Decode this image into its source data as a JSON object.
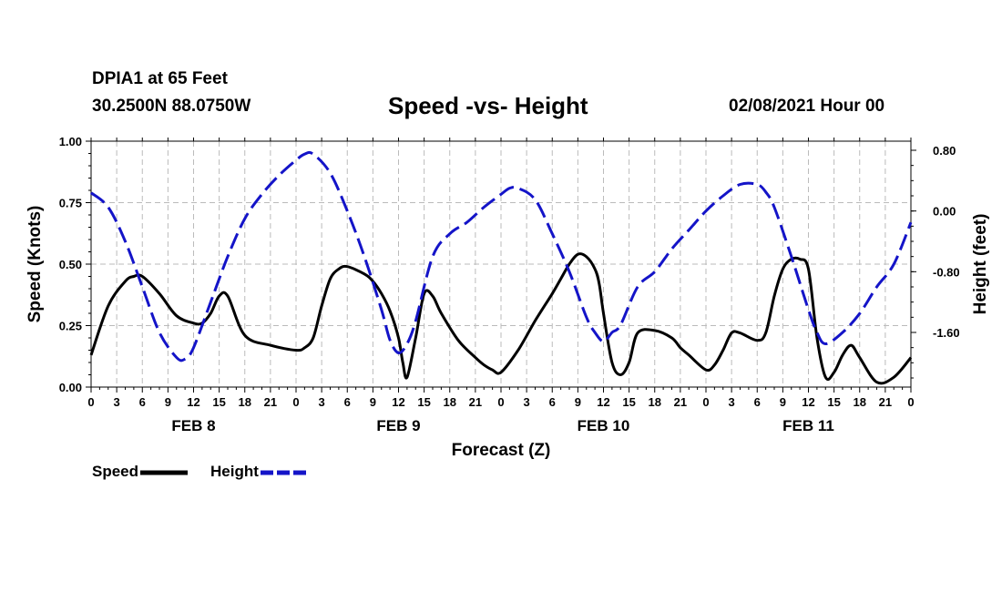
{
  "header": {
    "station_name": "DPIA1 at 65 Feet",
    "coordinates": "30.2500N 88.0750W",
    "title": "Speed -vs- Height",
    "run_time": "02/08/2021 Hour 00"
  },
  "legend": {
    "speed_label": "Speed",
    "height_label": "Height"
  },
  "colors": {
    "speed": "#000000",
    "height": "#1414c8",
    "grid": "#bbbbbb"
  },
  "chart_data": {
    "type": "line",
    "title": "Speed -vs- Height",
    "xlabel": "Forecast (Z)",
    "ylabel": "Speed (Knots)",
    "y2label": "Height (feet)",
    "xlim": [
      0,
      96
    ],
    "ylim": [
      0,
      1.0
    ],
    "y2lim": [
      -2.32,
      0.92
    ],
    "grid": true,
    "legend_position": "bottom-left",
    "x_ticks": [
      0,
      3,
      6,
      9,
      12,
      15,
      18,
      21,
      24,
      27,
      30,
      33,
      36,
      39,
      42,
      45,
      48,
      51,
      54,
      57,
      60,
      63,
      66,
      69,
      72,
      75,
      78,
      81,
      84,
      87,
      90,
      93,
      96
    ],
    "x_tick_labels": [
      "0",
      "3",
      "6",
      "9",
      "12",
      "15",
      "18",
      "21",
      "0",
      "3",
      "6",
      "9",
      "12",
      "15",
      "18",
      "21",
      "0",
      "3",
      "6",
      "9",
      "12",
      "15",
      "18",
      "21",
      "0",
      "3",
      "6",
      "9",
      "12",
      "15",
      "18",
      "21",
      "0"
    ],
    "y_ticks": [
      0.0,
      0.25,
      0.5,
      0.75,
      1.0
    ],
    "y_tick_labels": [
      "0.00",
      "0.25",
      "0.50",
      "0.75",
      "1.00"
    ],
    "y2_ticks": [
      0.8,
      0.0,
      -0.8,
      -1.6
    ],
    "y2_tick_labels": [
      "0.80",
      "0.00",
      "-0.80",
      "-1.60"
    ],
    "day_labels": [
      {
        "x": 12,
        "label": "FEB 8"
      },
      {
        "x": 36,
        "label": "FEB 9"
      },
      {
        "x": 60,
        "label": "FEB 10"
      },
      {
        "x": 84,
        "label": "FEB 11"
      }
    ],
    "series": [
      {
        "name": "Speed",
        "axis": "left",
        "style": "solid",
        "x": [
          0,
          2,
          4,
          5,
          6,
          8,
          10,
          12,
          13,
          14,
          15,
          16,
          18,
          21,
          24,
          25,
          26,
          27,
          28,
          29,
          30,
          32,
          33,
          34,
          35,
          36,
          36.5,
          37,
          38,
          39,
          40,
          41,
          43,
          45,
          46,
          47,
          48,
          50,
          52,
          54,
          55,
          56,
          57,
          58,
          59,
          59.5,
          60,
          61,
          62,
          63,
          64,
          66,
          68,
          69,
          70,
          72,
          73,
          74,
          75,
          76,
          78,
          79,
          80,
          81,
          82,
          83,
          84,
          85,
          86,
          87,
          88,
          89,
          90,
          92,
          94,
          96
        ],
        "values": [
          0.13,
          0.33,
          0.43,
          0.45,
          0.45,
          0.38,
          0.29,
          0.26,
          0.26,
          0.3,
          0.37,
          0.37,
          0.21,
          0.17,
          0.15,
          0.16,
          0.2,
          0.33,
          0.44,
          0.48,
          0.49,
          0.46,
          0.43,
          0.38,
          0.31,
          0.2,
          0.1,
          0.04,
          0.2,
          0.38,
          0.37,
          0.3,
          0.19,
          0.12,
          0.09,
          0.07,
          0.06,
          0.15,
          0.27,
          0.38,
          0.44,
          0.5,
          0.54,
          0.53,
          0.48,
          0.42,
          0.3,
          0.1,
          0.05,
          0.1,
          0.22,
          0.23,
          0.2,
          0.16,
          0.13,
          0.07,
          0.09,
          0.15,
          0.22,
          0.22,
          0.19,
          0.22,
          0.37,
          0.48,
          0.52,
          0.52,
          0.48,
          0.2,
          0.04,
          0.06,
          0.13,
          0.17,
          0.12,
          0.02,
          0.04,
          0.12
        ]
      },
      {
        "name": "Height",
        "axis": "right",
        "style": "dashed",
        "x": [
          0,
          2,
          4,
          6,
          8,
          10,
          11,
          12,
          14,
          16,
          18,
          20,
          22,
          24,
          25,
          26,
          28,
          30,
          32,
          34,
          35,
          36,
          37,
          38,
          40,
          42,
          44,
          46,
          48,
          49,
          50,
          52,
          54,
          56,
          58,
          59,
          60,
          61,
          62,
          64,
          66,
          68,
          70,
          72,
          74,
          76,
          78,
          79,
          80,
          82,
          84,
          85,
          86,
          88,
          90,
          92,
          94,
          96
        ],
        "values": [
          0.24,
          0.05,
          -0.4,
          -1.0,
          -1.6,
          -1.93,
          -1.95,
          -1.8,
          -1.2,
          -0.6,
          -0.1,
          0.22,
          0.47,
          0.67,
          0.75,
          0.75,
          0.5,
          0.0,
          -0.6,
          -1.3,
          -1.7,
          -1.87,
          -1.75,
          -1.45,
          -0.6,
          -0.3,
          -0.15,
          0.05,
          0.22,
          0.3,
          0.3,
          0.15,
          -0.3,
          -0.8,
          -1.4,
          -1.6,
          -1.72,
          -1.6,
          -1.5,
          -1.0,
          -0.8,
          -0.5,
          -0.25,
          0.0,
          0.2,
          0.35,
          0.35,
          0.25,
          0.05,
          -0.6,
          -1.3,
          -1.6,
          -1.75,
          -1.6,
          -1.35,
          -1.0,
          -0.7,
          -0.15
        ]
      }
    ]
  }
}
